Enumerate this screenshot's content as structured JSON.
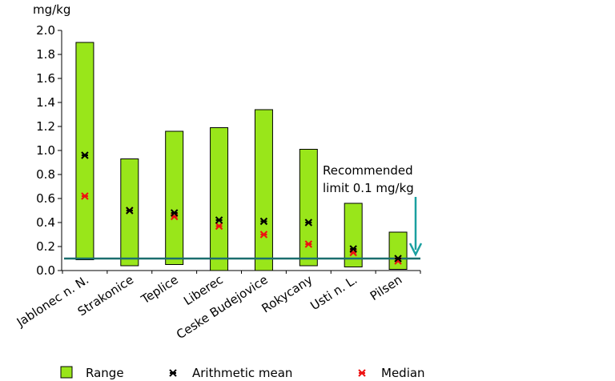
{
  "chart_data": {
    "type": "range",
    "unit": "mg/kg",
    "ylim": [
      0,
      2.0
    ],
    "yticks": [
      "0.0",
      "0.2",
      "0.4",
      "0.6",
      "0.8",
      "1.0",
      "1.2",
      "1.4",
      "1.6",
      "1.8",
      "2.0"
    ],
    "categories": [
      "Jablonec n. N.",
      "Strakonice",
      "Teplice",
      "Liberec",
      "Ceske Budejovice",
      "Rokycany",
      "Usti n. L.",
      "Pilsen"
    ],
    "series": [
      {
        "name": "Range",
        "min": [
          0.09,
          0.04,
          0.05,
          0.0,
          0.0,
          0.04,
          0.03,
          0.01
        ],
        "max": [
          1.9,
          0.93,
          1.16,
          1.19,
          1.34,
          1.01,
          0.56,
          0.32
        ]
      },
      {
        "name": "Arithmetic mean",
        "values": [
          0.96,
          0.5,
          0.48,
          0.42,
          0.41,
          0.4,
          0.18,
          0.1
        ]
      },
      {
        "name": "Median",
        "values": [
          0.62,
          0.5,
          0.45,
          0.37,
          0.3,
          0.22,
          0.15,
          0.08
        ]
      }
    ],
    "reference_line": {
      "value": 0.1,
      "label_lines": [
        "Recommended",
        "limit 0.1 mg/kg"
      ]
    },
    "grid": false,
    "legend_position": "bottom",
    "colors": {
      "range_fill": "#99e61a",
      "mean": "#000000",
      "median": "#ee1111",
      "limit": "#1a6e6e",
      "arrow": "#1aa0a0"
    }
  }
}
